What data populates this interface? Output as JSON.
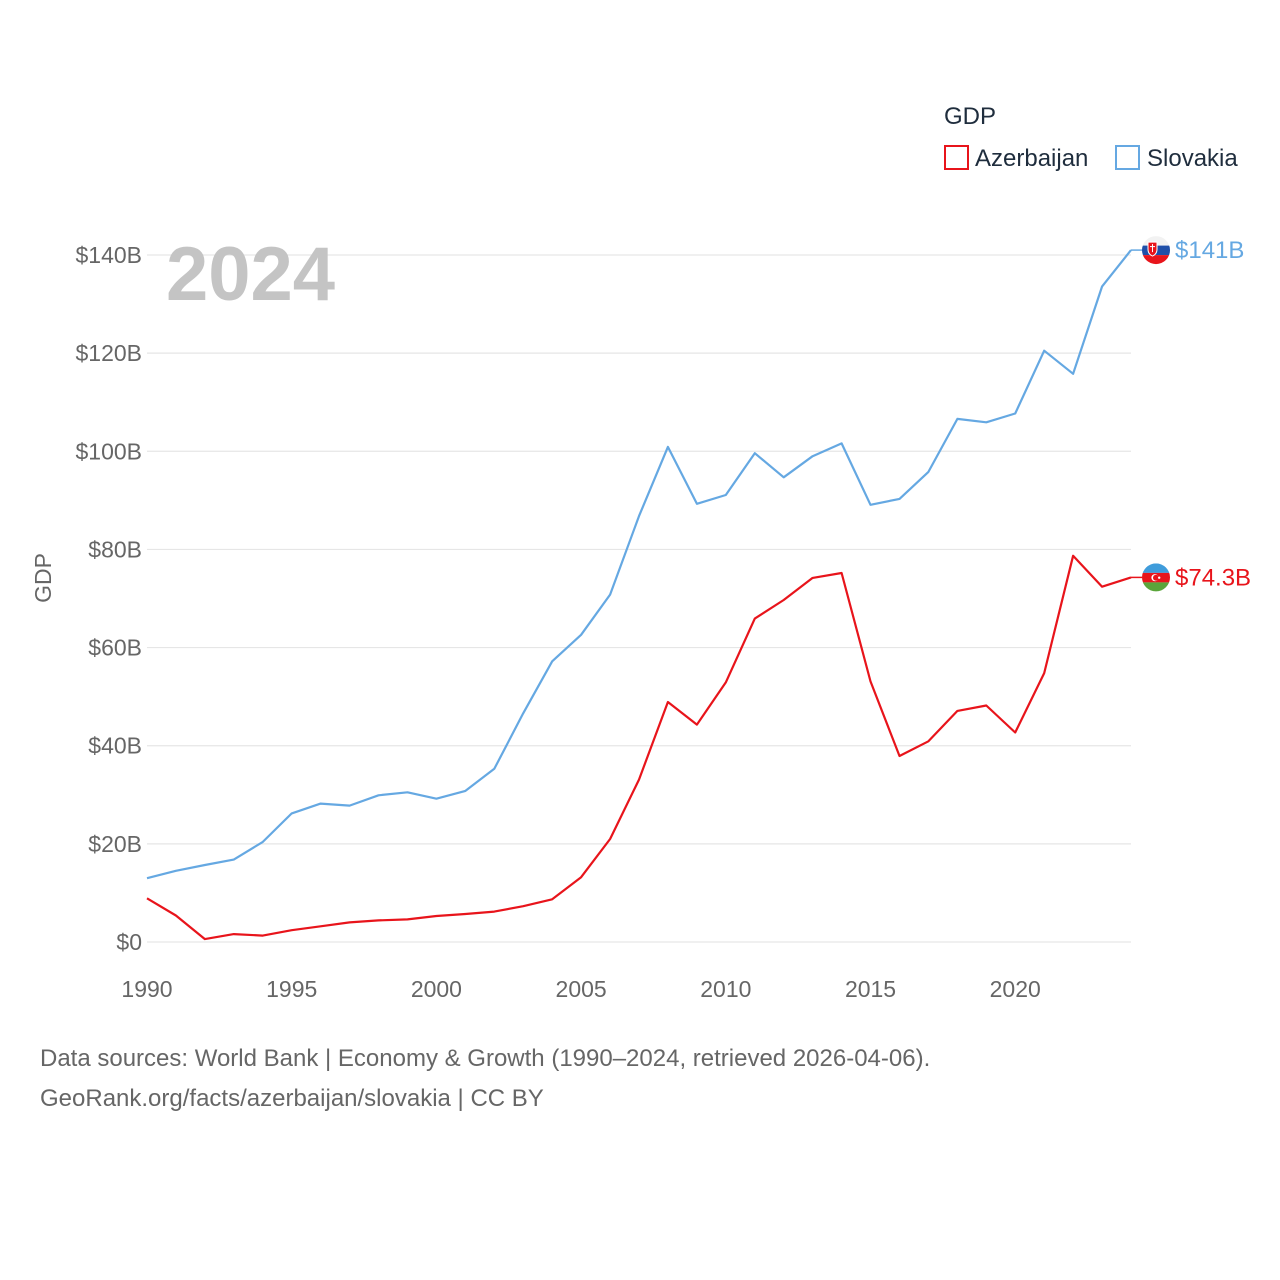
{
  "chart_data": {
    "type": "line",
    "legend_title": "GDP",
    "ylabel": "GDP",
    "year_label": "2024",
    "x": [
      1990,
      1991,
      1992,
      1993,
      1994,
      1995,
      1996,
      1997,
      1998,
      1999,
      2000,
      2001,
      2002,
      2003,
      2004,
      2005,
      2006,
      2007,
      2008,
      2009,
      2010,
      2011,
      2012,
      2013,
      2014,
      2015,
      2016,
      2017,
      2018,
      2019,
      2020,
      2021,
      2022,
      2023,
      2024
    ],
    "xlim": [
      1990,
      2024
    ],
    "x_ticks": [
      1990,
      1995,
      2000,
      2005,
      2010,
      2015,
      2020
    ],
    "ylim": [
      0,
      140
    ],
    "y_ticks": [
      0,
      20,
      40,
      60,
      80,
      100,
      120,
      140
    ],
    "y_tick_labels": [
      "$0",
      "$20B",
      "$40B",
      "$60B",
      "$80B",
      "$100B",
      "$120B",
      "$140B"
    ],
    "series": [
      {
        "name": "Azerbaijan",
        "color": "#e8141b",
        "end_label": "$74.3B",
        "flag": "azerbaijan-flag",
        "values": [
          8.9,
          5.4,
          0.6,
          1.6,
          1.3,
          2.4,
          3.2,
          4.0,
          4.4,
          4.6,
          5.3,
          5.7,
          6.2,
          7.3,
          8.7,
          13.2,
          21.0,
          33.1,
          48.9,
          44.3,
          52.9,
          65.9,
          69.7,
          74.2,
          75.2,
          53.1,
          37.9,
          40.9,
          47.1,
          48.2,
          42.7,
          54.8,
          78.7,
          72.4,
          74.3
        ]
      },
      {
        "name": "Slovakia",
        "color": "#65a8e2",
        "end_label": "$141B",
        "flag": "slovakia-flag",
        "values": [
          13.0,
          14.5,
          15.7,
          16.8,
          20.4,
          26.2,
          28.2,
          27.8,
          29.9,
          30.5,
          29.2,
          30.8,
          35.3,
          46.6,
          57.2,
          62.6,
          70.8,
          86.8,
          100.9,
          89.3,
          91.1,
          99.6,
          94.7,
          99.0,
          101.6,
          89.1,
          90.3,
          95.8,
          106.6,
          105.9,
          107.7,
          120.5,
          115.8,
          133.6,
          141.0
        ]
      }
    ]
  },
  "footer": {
    "line1": "Data sources: World Bank | Economy & Growth (1990–2024, retrieved 2026-04-06).",
    "line2": "GeoRank.org/facts/azerbaijan/slovakia | CC BY"
  }
}
